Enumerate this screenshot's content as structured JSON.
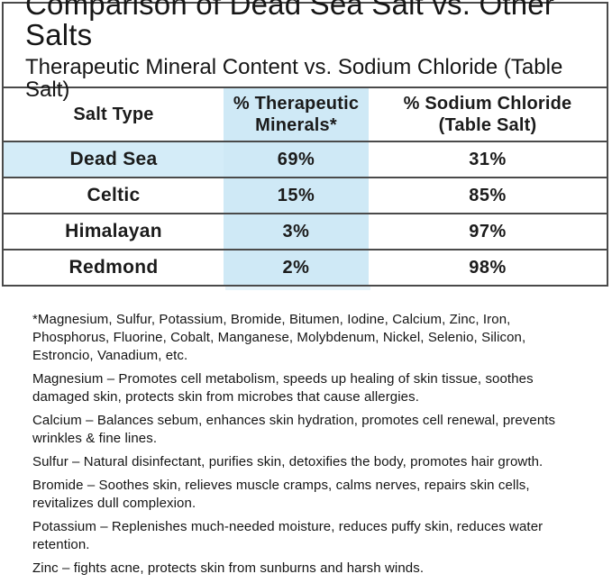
{
  "header": {
    "title": "Comparison of Dead Sea Salt vs. Other Salts",
    "subtitle": "Therapeutic Mineral Content vs. Sodium Chloride (Table Salt)"
  },
  "table": {
    "headers": {
      "salt_type": "Salt Type",
      "therapeutic_line1": "% Therapeutic",
      "therapeutic_line2": "Minerals*",
      "sodium_line1": "% Sodium Chloride",
      "sodium_line2": "(Table Salt)"
    },
    "rows": [
      {
        "salt": "Dead Sea",
        "therapeutic": "69%",
        "sodium": "31%",
        "highlighted": true
      },
      {
        "salt": "Celtic",
        "therapeutic": "15%",
        "sodium": "85%",
        "highlighted": false
      },
      {
        "salt": "Himalayan",
        "therapeutic": "3%",
        "sodium": "97%",
        "highlighted": false
      },
      {
        "salt": "Redmond",
        "therapeutic": "2%",
        "sodium": "98%",
        "highlighted": false
      }
    ]
  },
  "footnotes": [
    "*Magnesium, Sulfur, Potassium, Bromide, Bitumen, Iodine, Calcium, Zinc, Iron, Phosphorus, Fluorine, Cobalt, Manganese, Molybdenum, Nickel, Selenio, Silicon, Estroncio, Vanadium, etc.",
    "Magnesium – Promotes cell metabolism, speeds up healing of skin tissue, soothes damaged skin, protects skin from microbes that cause allergies.",
    "Calcium – Balances sebum, enhances skin hydration, promotes cell renewal, prevents wrinkles & fine lines.",
    "Sulfur – Natural disinfectant, purifies skin, detoxifies the body, promotes hair growth.",
    "Bromide – Soothes skin, relieves muscle cramps, calms nerves, repairs skin cells, revitalizes dull complexion.",
    "Potassium – Replenishes much-needed moisture, reduces puffy skin, reduces water retention.",
    "Zinc – fights acne, protects skin from sunburns and harsh winds."
  ],
  "colors": {
    "highlight_blue": "#cfe9f6",
    "row_highlight_blue": "#d4ecf8",
    "border_gray": "#4a4a4a",
    "text": "#1b1b1b"
  },
  "chart_data": {
    "type": "table",
    "title": "Comparison of Dead Sea Salt vs. Other Salts",
    "subtitle": "Therapeutic Mineral Content vs. Sodium Chloride (Table Salt)",
    "categories": [
      "Dead Sea",
      "Celtic",
      "Himalayan",
      "Redmond"
    ],
    "series": [
      {
        "name": "% Therapeutic Minerals*",
        "values": [
          69,
          15,
          3,
          2
        ],
        "unit": "%"
      },
      {
        "name": "% Sodium Chloride (Table Salt)",
        "values": [
          31,
          85,
          97,
          98
        ],
        "unit": "%"
      }
    ],
    "highlighted_row": "Dead Sea",
    "highlighted_column": "% Therapeutic Minerals*"
  }
}
